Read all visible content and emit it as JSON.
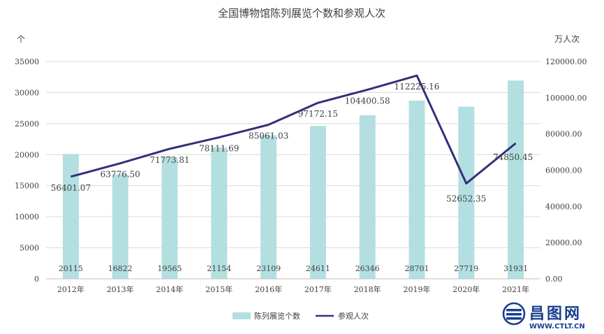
{
  "chart_data": {
    "type": "bar",
    "title": "全国博物馆陈列展览个数和参观人次",
    "left_axis_unit": "个",
    "right_axis_unit": "万人次",
    "categories": [
      "2012年",
      "2013年",
      "2014年",
      "2015年",
      "2016年",
      "2017年",
      "2018年",
      "2019年",
      "2020年",
      "2021年"
    ],
    "left_ticks": [
      "0",
      "5000",
      "10000",
      "15000",
      "20000",
      "25000",
      "30000",
      "35000"
    ],
    "right_ticks": [
      "0.00",
      "20000.00",
      "40000.00",
      "60000.00",
      "80000.00",
      "100000.00",
      "120000.00"
    ],
    "ylim_left": [
      0,
      35000
    ],
    "ylim_right": [
      0,
      120000
    ],
    "series": [
      {
        "name": "陈列展览个数",
        "type": "bar",
        "axis": "left",
        "color": "#b3dfe0",
        "values": [
          20115,
          16822,
          19565,
          21154,
          23109,
          24611,
          26346,
          28701,
          27719,
          31931
        ],
        "labels": [
          "20115",
          "16822",
          "19565",
          "21154",
          "23109",
          "24611",
          "26346",
          "28701",
          "27719",
          "31931"
        ]
      },
      {
        "name": "参观人次",
        "type": "line",
        "axis": "right",
        "color": "#33307a",
        "values": [
          56401.07,
          63776.5,
          71773.81,
          78111.69,
          85061.03,
          97172.15,
          104400.58,
          112225.16,
          52652.35,
          74850.45
        ],
        "labels": [
          "56401.07",
          "63776.50",
          "71773.81",
          "78111.69",
          "85061.03",
          "97172.15",
          "104400.58",
          "112225.16",
          "52652.35",
          "74850.45"
        ]
      }
    ],
    "grid": true,
    "legend_position": "bottom"
  },
  "logo": {
    "name": "昌图网",
    "url_text": "WWW.CTLT.CN",
    "color": "#1b3f8f"
  }
}
